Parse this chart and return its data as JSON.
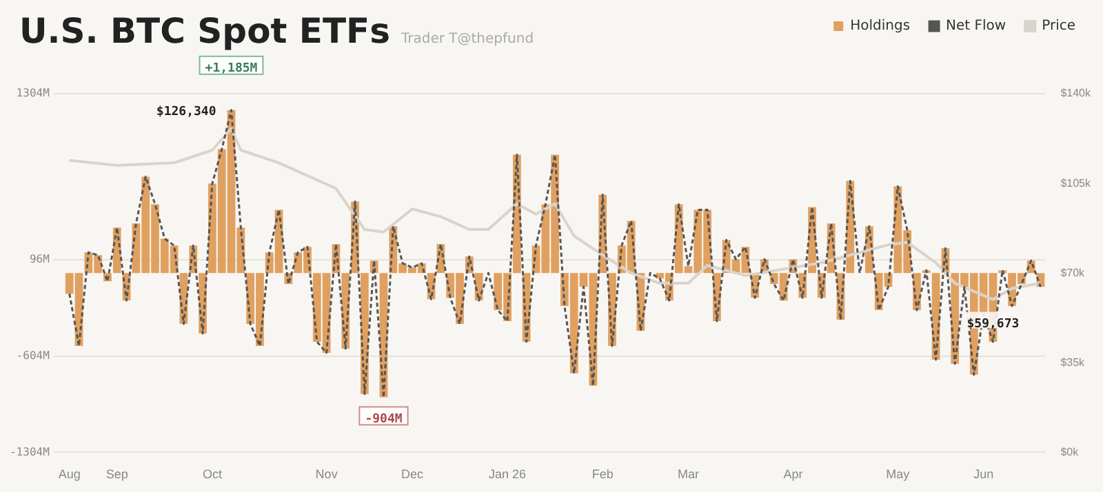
{
  "chart_data": {
    "type": "bar",
    "title": "U.S. BTC Spot ETFs",
    "subtitle": "Trader T@thepfund",
    "categories": [
      "Aug",
      null,
      null,
      null,
      null,
      "Sep",
      null,
      null,
      null,
      null,
      null,
      null,
      null,
      null,
      null,
      "Oct",
      null,
      null,
      null,
      null,
      null,
      null,
      null,
      null,
      null,
      null,
      null,
      "Nov",
      null,
      null,
      null,
      null,
      null,
      null,
      null,
      null,
      "Dec",
      null,
      null,
      null,
      null,
      null,
      null,
      null,
      null,
      null,
      "Jan 26",
      null,
      null,
      null,
      null,
      null,
      null,
      null,
      null,
      null,
      "Feb",
      null,
      null,
      null,
      null,
      null,
      null,
      null,
      null,
      "Mar",
      null,
      null,
      null,
      null,
      null,
      null,
      null,
      null,
      null,
      null,
      "Apr",
      null,
      null,
      null,
      null,
      null,
      null,
      null,
      null,
      null,
      null,
      "May",
      null,
      null,
      null,
      null,
      null,
      null,
      null,
      null,
      "Jun",
      null,
      null,
      null,
      null,
      null,
      null
    ],
    "series": [
      {
        "name": "Holdings",
        "color": "#e0a060",
        "values": [
          -150,
          -530,
          150,
          130,
          -60,
          330,
          -200,
          360,
          700,
          500,
          250,
          200,
          -370,
          200,
          -440,
          650,
          900,
          1185,
          330,
          -370,
          -530,
          150,
          460,
          -80,
          150,
          190,
          -500,
          -580,
          210,
          -550,
          520,
          -880,
          90,
          -904,
          340,
          70,
          40,
          70,
          -190,
          210,
          -180,
          -370,
          120,
          -200,
          0,
          -270,
          -350,
          860,
          -500,
          200,
          500,
          860,
          -240,
          -730,
          -100,
          -820,
          570,
          -530,
          200,
          380,
          -420,
          0,
          -40,
          -200,
          500,
          50,
          460,
          460,
          -350,
          240,
          100,
          190,
          -180,
          100,
          -80,
          -200,
          100,
          -180,
          480,
          -180,
          360,
          -340,
          670,
          0,
          340,
          -270,
          -100,
          630,
          310,
          -270,
          20,
          -630,
          180,
          -660,
          -100,
          -740,
          -300,
          -500,
          20,
          -240,
          -80,
          90,
          -100
        ]
      },
      {
        "name": "Net Flow",
        "type": "line",
        "line_style": "dashed",
        "color": "#555555",
        "values": [
          -150,
          -530,
          150,
          130,
          -60,
          330,
          -200,
          360,
          700,
          500,
          250,
          200,
          -370,
          200,
          -440,
          650,
          900,
          1185,
          330,
          -370,
          -530,
          150,
          460,
          -80,
          150,
          190,
          -500,
          -580,
          210,
          -550,
          520,
          -880,
          90,
          -904,
          340,
          70,
          40,
          70,
          -190,
          210,
          -180,
          -370,
          120,
          -200,
          0,
          -270,
          -350,
          860,
          -500,
          200,
          500,
          860,
          -240,
          -730,
          -100,
          -820,
          570,
          -530,
          200,
          380,
          -420,
          0,
          -40,
          -200,
          500,
          50,
          460,
          460,
          -350,
          240,
          100,
          190,
          -180,
          100,
          -80,
          -200,
          100,
          -180,
          480,
          -180,
          360,
          -340,
          670,
          0,
          340,
          -270,
          -100,
          630,
          310,
          -270,
          20,
          -630,
          180,
          -660,
          -100,
          -740,
          -300,
          -500,
          20,
          -240,
          -80,
          90,
          -100
        ]
      },
      {
        "name": "Price",
        "type": "line",
        "axis": "y2",
        "color": "#d9d3cb",
        "values": [
          114000,
          null,
          null,
          null,
          null,
          112000,
          null,
          null,
          null,
          null,
          null,
          113000,
          null,
          null,
          null,
          118000,
          null,
          126340,
          118000,
          null,
          null,
          null,
          113000,
          null,
          null,
          null,
          null,
          null,
          103000,
          null,
          null,
          87000,
          null,
          86000,
          null,
          null,
          95000,
          null,
          null,
          92000,
          null,
          null,
          87000,
          null,
          87000,
          null,
          null,
          97000,
          null,
          93000,
          null,
          97000,
          null,
          84500,
          null,
          null,
          77000,
          null,
          null,
          70000,
          null,
          null,
          66000,
          null,
          null,
          66000,
          null,
          73000,
          null,
          null,
          null,
          69000,
          null,
          null,
          null,
          71500,
          null,
          null,
          null,
          74000,
          null,
          null,
          null,
          78000,
          null,
          null,
          81000,
          null,
          82000,
          null,
          null,
          74000,
          null,
          66000,
          null,
          null,
          null,
          59673,
          null,
          64000,
          null,
          null,
          66000
        ]
      }
    ],
    "ylim": [
      -1304,
      1304
    ],
    "yticks": [
      {
        "value": 1304,
        "label": "1304M"
      },
      {
        "value": 96,
        "label": "96M"
      },
      {
        "value": -604,
        "label": "-604M"
      },
      {
        "value": -1304,
        "label": "-1304M"
      }
    ],
    "y2lim": [
      0,
      140000
    ],
    "y2ticks": [
      {
        "value": 0,
        "label": "$0k"
      },
      {
        "value": 35000,
        "label": "$35k"
      },
      {
        "value": 70000,
        "label": "$70k"
      },
      {
        "value": 105000,
        "label": "$105k"
      },
      {
        "value": 140000,
        "label": "$140k"
      }
    ],
    "grid": "y",
    "legend": "top right",
    "annotations": [
      {
        "text": "+1,185M",
        "y": 1185
      },
      "$126,340",
      {
        "text": "-904M",
        "y": -904
      },
      "$59,673"
    ]
  }
}
